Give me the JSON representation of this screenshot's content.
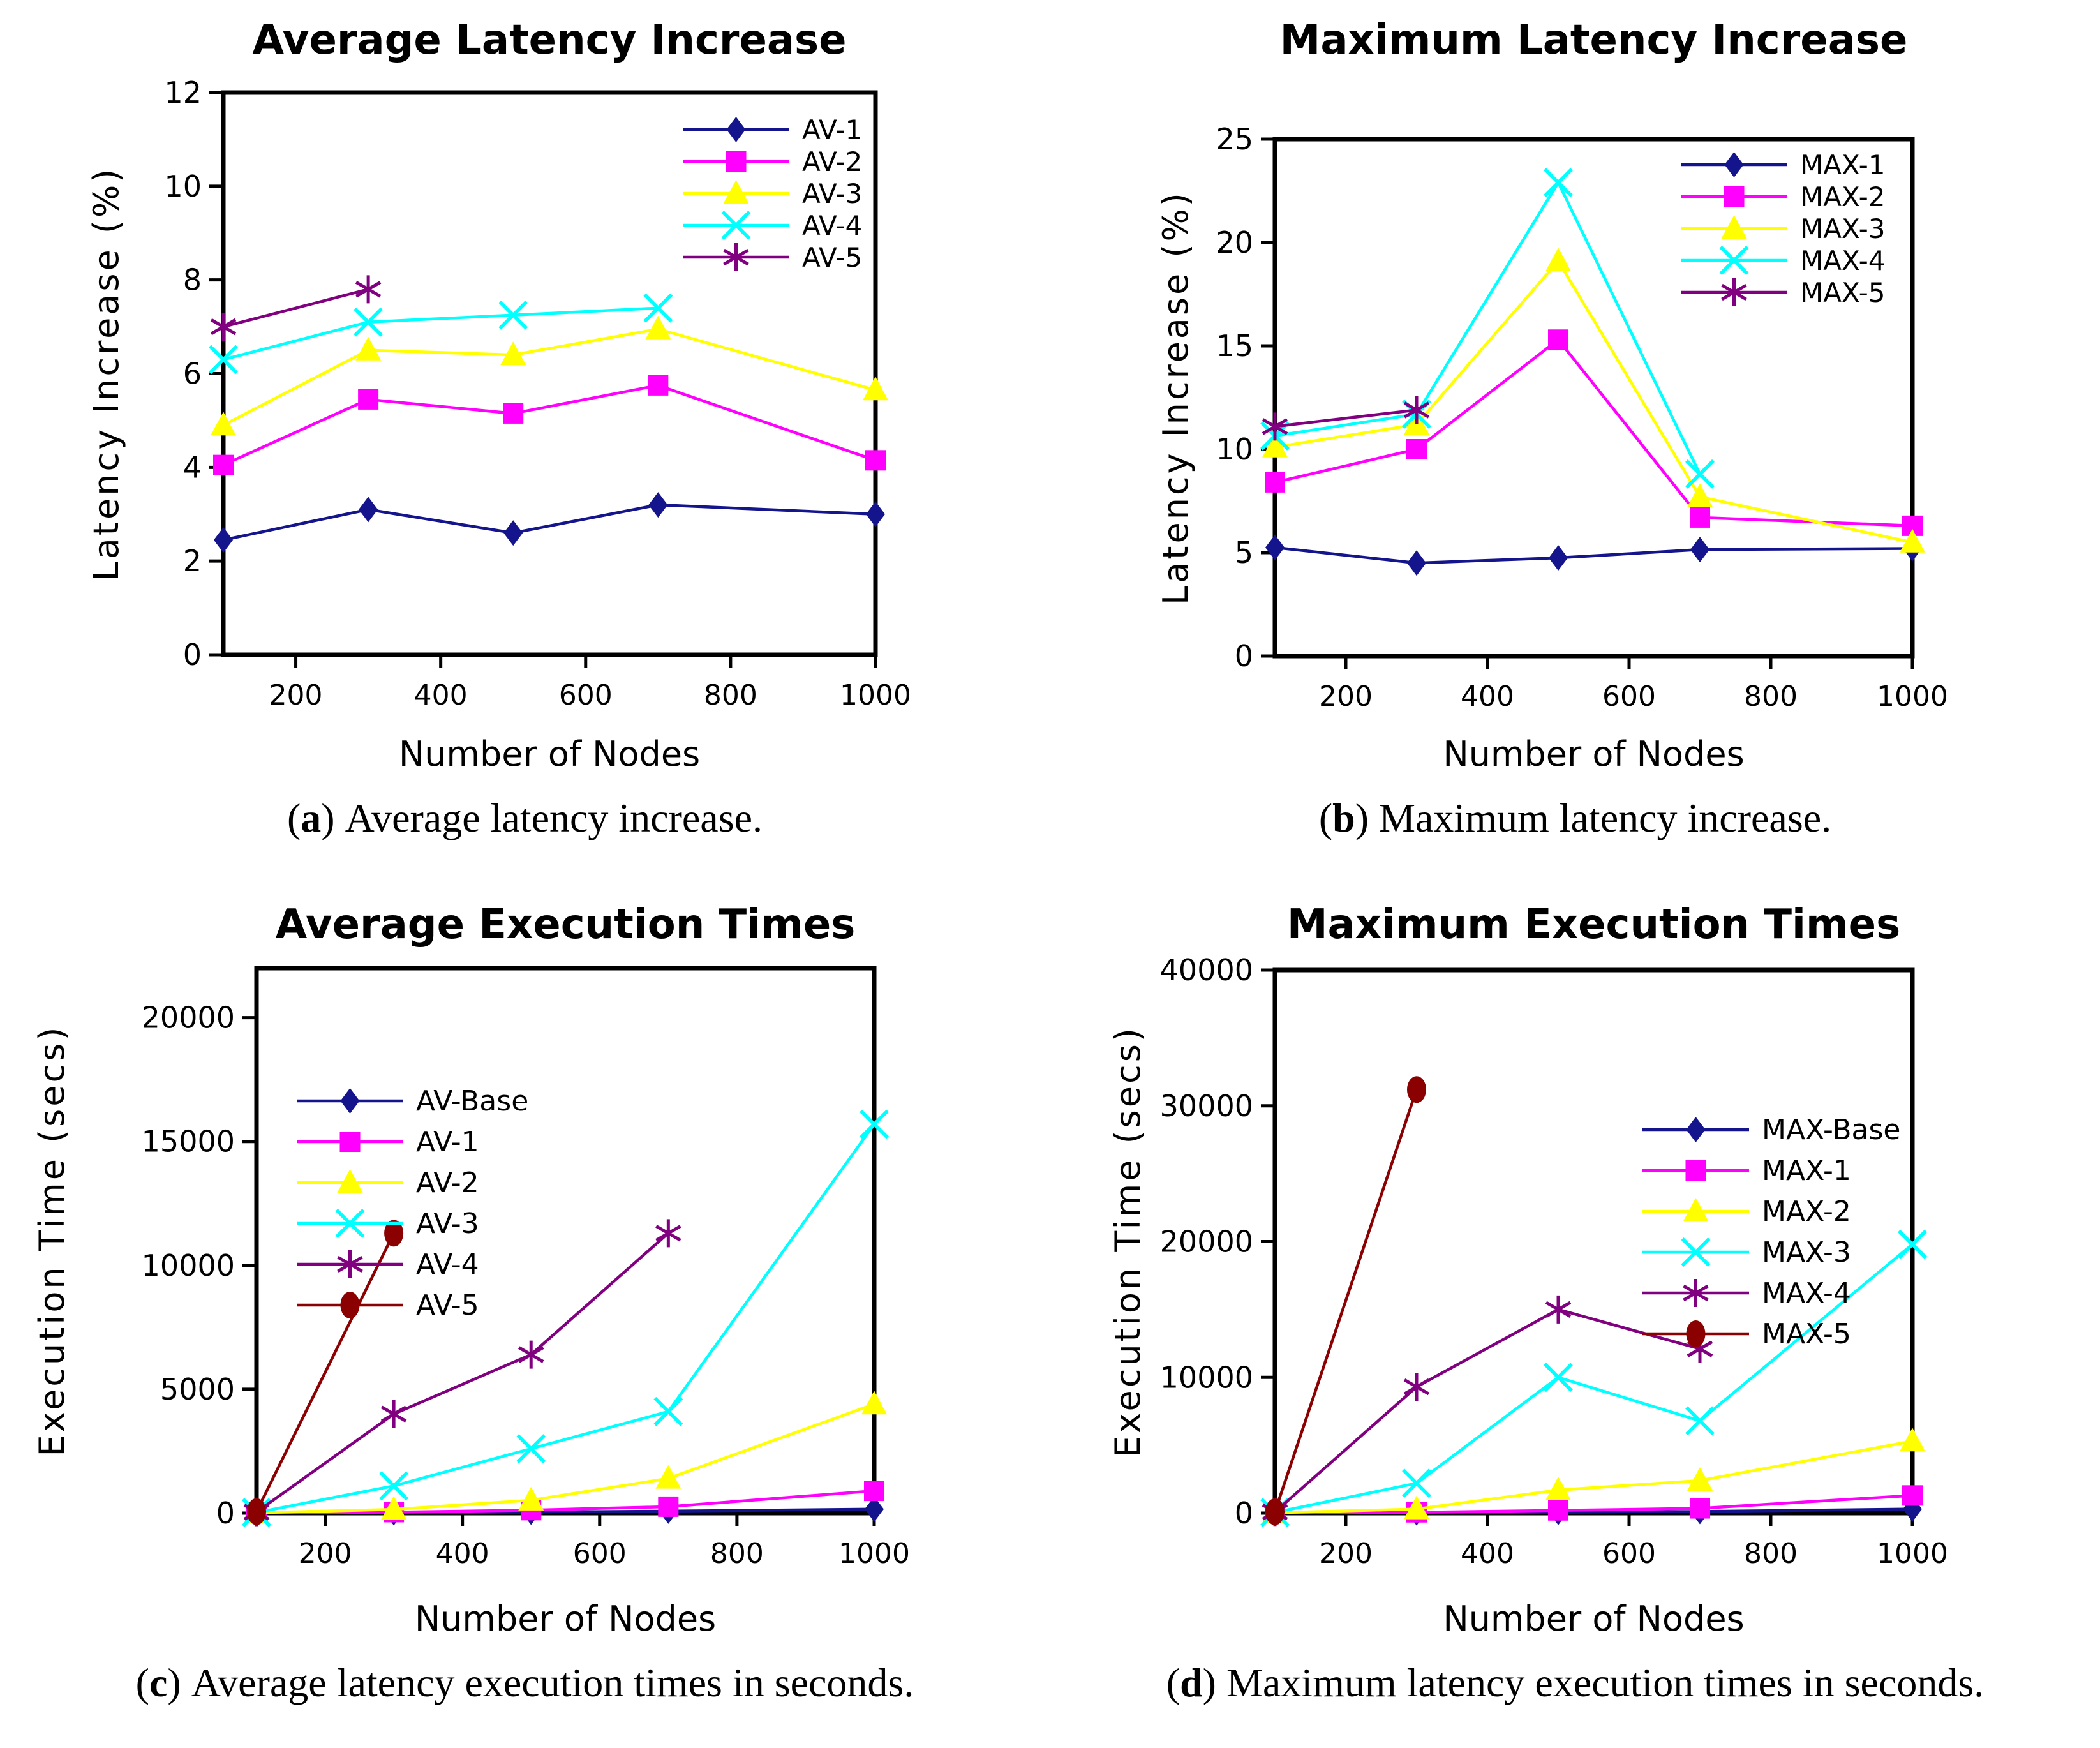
{
  "page": {
    "background": "#ffffff"
  },
  "captions": [
    {
      "open": "(",
      "letter": "a",
      "close": ")",
      "text": "Average latency increase."
    },
    {
      "open": "(",
      "letter": "b",
      "close": ")",
      "text": "Maximum latency increase."
    },
    {
      "open": "(",
      "letter": "c",
      "close": ")",
      "text": "Average latency execution times in seconds."
    },
    {
      "open": "(",
      "letter": "d",
      "close": ")",
      "text": "Maximum latency execution times in seconds."
    }
  ],
  "chart_data": [
    {
      "type": "line",
      "title": "Average Latency Increase",
      "xlabel": "Number of Nodes",
      "ylabel": "Latency Increase (%)",
      "xlim": [
        100,
        1000
      ],
      "ylim": [
        0,
        12
      ],
      "xticks": [
        200,
        400,
        600,
        800,
        1000
      ],
      "yticks": [
        0,
        2,
        4,
        6,
        8,
        10,
        12
      ],
      "grid": false,
      "legend_position": "top-right",
      "series": [
        {
          "name": "AV-1",
          "color": "#14148c",
          "marker": "diamond",
          "x": [
            100,
            300,
            500,
            700,
            1000
          ],
          "y": [
            2.45,
            3.1,
            2.6,
            3.2,
            3.0
          ]
        },
        {
          "name": "AV-2",
          "color": "#ff00ff",
          "marker": "square",
          "x": [
            100,
            300,
            500,
            700,
            1000
          ],
          "y": [
            4.05,
            5.45,
            5.15,
            5.75,
            4.15
          ]
        },
        {
          "name": "AV-3",
          "color": "#ffff00",
          "marker": "triangle",
          "x": [
            100,
            300,
            500,
            700,
            1000
          ],
          "y": [
            4.9,
            6.5,
            6.4,
            6.95,
            5.65
          ]
        },
        {
          "name": "AV-4",
          "color": "#00ffff",
          "marker": "x",
          "x": [
            100,
            300,
            500,
            700
          ],
          "y": [
            6.3,
            7.1,
            7.25,
            7.4
          ]
        },
        {
          "name": "AV-5",
          "color": "#800080",
          "marker": "asterisk",
          "x": [
            100,
            300
          ],
          "y": [
            7.0,
            7.8
          ]
        }
      ]
    },
    {
      "type": "line",
      "title": "Maximum Latency Increase",
      "xlabel": "Number of Nodes",
      "ylabel": "Latency Increase (%)",
      "xlim": [
        100,
        1000
      ],
      "ylim": [
        0,
        25
      ],
      "xticks": [
        200,
        400,
        600,
        800,
        1000
      ],
      "yticks": [
        0,
        5,
        10,
        15,
        20,
        25
      ],
      "grid": false,
      "legend_position": "top-right",
      "series": [
        {
          "name": "MAX-1",
          "color": "#14148c",
          "marker": "diamond",
          "x": [
            100,
            300,
            500,
            700,
            1000
          ],
          "y": [
            5.25,
            4.5,
            4.75,
            5.15,
            5.2
          ]
        },
        {
          "name": "MAX-2",
          "color": "#ff00ff",
          "marker": "square",
          "x": [
            100,
            300,
            500,
            700,
            1000
          ],
          "y": [
            8.4,
            10.0,
            15.3,
            6.7,
            6.3
          ]
        },
        {
          "name": "MAX-3",
          "color": "#ffff00",
          "marker": "triangle",
          "x": [
            100,
            300,
            500,
            700,
            1000
          ],
          "y": [
            10.1,
            11.2,
            19.1,
            7.7,
            5.5
          ]
        },
        {
          "name": "MAX-4",
          "color": "#00ffff",
          "marker": "x",
          "x": [
            100,
            300,
            500,
            700
          ],
          "y": [
            10.65,
            11.7,
            22.9,
            8.8
          ]
        },
        {
          "name": "MAX-5",
          "color": "#800080",
          "marker": "asterisk",
          "x": [
            100,
            300
          ],
          "y": [
            11.1,
            11.9
          ]
        }
      ]
    },
    {
      "type": "line",
      "title": "Average Execution Times",
      "xlabel": "Number of Nodes",
      "ylabel": "Execution Time (secs)",
      "xlim": [
        100,
        1000
      ],
      "ylim": [
        0,
        22000
      ],
      "xticks": [
        200,
        400,
        600,
        800,
        1000
      ],
      "yticks": [
        0,
        5000,
        10000,
        15000,
        20000
      ],
      "grid": false,
      "legend_position": "top-left",
      "series": [
        {
          "name": "AV-Base",
          "color": "#14148c",
          "marker": "diamond",
          "x": [
            100,
            300,
            500,
            700,
            1000
          ],
          "y": [
            5,
            15,
            40,
            80,
            160
          ]
        },
        {
          "name": "AV-1",
          "color": "#ff00ff",
          "marker": "square",
          "x": [
            100,
            300,
            500,
            700,
            1000
          ],
          "y": [
            10,
            40,
            120,
            260,
            900
          ]
        },
        {
          "name": "AV-2",
          "color": "#ffff00",
          "marker": "triangle",
          "x": [
            100,
            300,
            500,
            700,
            1000
          ],
          "y": [
            15,
            150,
            520,
            1400,
            4400
          ]
        },
        {
          "name": "AV-3",
          "color": "#00ffff",
          "marker": "x",
          "x": [
            100,
            300,
            500,
            700,
            1000
          ],
          "y": [
            25,
            1100,
            2600,
            4100,
            15700
          ]
        },
        {
          "name": "AV-4",
          "color": "#800080",
          "marker": "asterisk",
          "x": [
            100,
            300,
            500,
            700
          ],
          "y": [
            40,
            4000,
            6400,
            11300
          ]
        },
        {
          "name": "AV-5",
          "color": "#8b0000",
          "marker": "circle",
          "x": [
            100,
            300
          ],
          "y": [
            60,
            11300
          ]
        }
      ]
    },
    {
      "type": "line",
      "title": "Maximum Execution Times",
      "xlabel": "Number of Nodes",
      "ylabel": "Execution Time (secs)",
      "xlim": [
        100,
        1000
      ],
      "ylim": [
        0,
        40000
      ],
      "xticks": [
        200,
        400,
        600,
        800,
        1000
      ],
      "yticks": [
        0,
        10000,
        20000,
        30000,
        40000
      ],
      "grid": false,
      "legend_position": "top-right",
      "series": [
        {
          "name": "MAX-Base",
          "color": "#14148c",
          "marker": "diamond",
          "x": [
            100,
            300,
            500,
            700,
            1000
          ],
          "y": [
            10,
            25,
            60,
            120,
            300
          ]
        },
        {
          "name": "MAX-1",
          "color": "#ff00ff",
          "marker": "square",
          "x": [
            100,
            300,
            500,
            700,
            1000
          ],
          "y": [
            20,
            60,
            200,
            350,
            1300
          ]
        },
        {
          "name": "MAX-2",
          "color": "#ffff00",
          "marker": "triangle",
          "x": [
            100,
            300,
            500,
            700,
            1000
          ],
          "y": [
            30,
            300,
            1700,
            2400,
            5300
          ]
        },
        {
          "name": "MAX-3",
          "color": "#00ffff",
          "marker": "x",
          "x": [
            100,
            300,
            500,
            700,
            1000
          ],
          "y": [
            50,
            2200,
            10000,
            6800,
            19800
          ]
        },
        {
          "name": "MAX-4",
          "color": "#800080",
          "marker": "asterisk",
          "x": [
            100,
            300,
            500,
            700
          ],
          "y": [
            80,
            9300,
            15000,
            12100
          ]
        },
        {
          "name": "MAX-5",
          "color": "#8b0000",
          "marker": "circle",
          "x": [
            100,
            300
          ],
          "y": [
            100,
            31200
          ]
        }
      ]
    }
  ]
}
